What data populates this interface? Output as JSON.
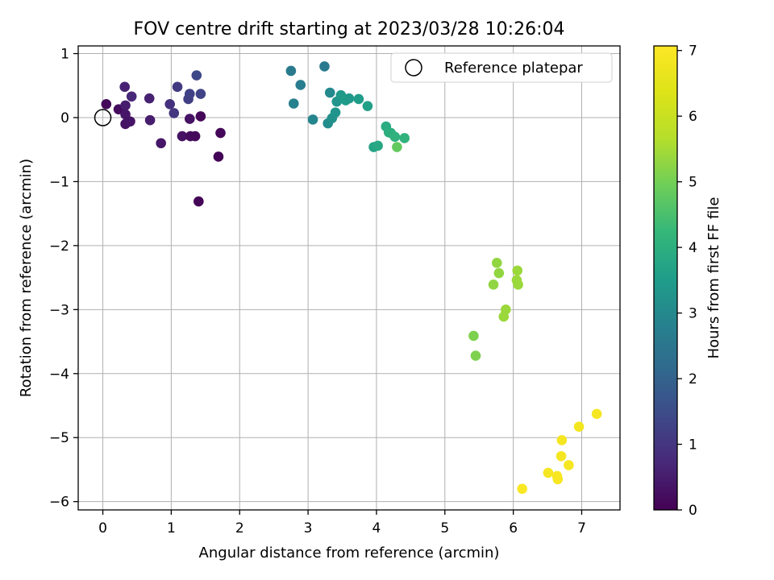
{
  "chart_data": {
    "type": "scatter",
    "title": "FOV centre drift starting at 2023/03/28 10:26:04",
    "xlabel": "Angular distance from reference (arcmin)",
    "ylabel": "Rotation from reference (arcmin)",
    "xlim": [
      -0.36,
      7.56
    ],
    "ylim": [
      -6.13,
      1.12
    ],
    "xticks": [
      0,
      1,
      2,
      3,
      4,
      5,
      6,
      7
    ],
    "yticks": [
      1,
      0,
      -1,
      -2,
      -3,
      -4,
      -5,
      -6
    ],
    "grid": true,
    "legend": {
      "position": "top-right",
      "entries": [
        "Reference platepar"
      ]
    },
    "reference_point": {
      "x": 0,
      "y": 0
    },
    "colorbar": {
      "label": "Hours from first FF file",
      "min": 0,
      "max": 7.07,
      "ticks": [
        0,
        1,
        2,
        3,
        4,
        5,
        6,
        7
      ],
      "colormap": "viridis"
    },
    "points": [
      {
        "x": 0.05,
        "y": 0.21,
        "c": 0.1
      },
      {
        "x": 0.23,
        "y": 0.13,
        "c": 0.2
      },
      {
        "x": 0.32,
        "y": 0.48,
        "c": 0.6
      },
      {
        "x": 0.33,
        "y": 0.19,
        "c": 0.5
      },
      {
        "x": 0.33,
        "y": 0.05,
        "c": 0.4
      },
      {
        "x": 0.33,
        "y": -0.1,
        "c": 0.3
      },
      {
        "x": 0.4,
        "y": -0.06,
        "c": 0.35
      },
      {
        "x": 0.42,
        "y": 0.33,
        "c": 0.7
      },
      {
        "x": 0.68,
        "y": 0.3,
        "c": 0.6
      },
      {
        "x": 0.69,
        "y": -0.04,
        "c": 0.5
      },
      {
        "x": 0.85,
        "y": -0.4,
        "c": 0.4
      },
      {
        "x": 0.98,
        "y": 0.21,
        "c": 0.9
      },
      {
        "x": 1.04,
        "y": 0.07,
        "c": 1.0
      },
      {
        "x": 1.09,
        "y": 0.48,
        "c": 1.1
      },
      {
        "x": 1.16,
        "y": -0.29,
        "c": 0.3
      },
      {
        "x": 1.25,
        "y": 0.29,
        "c": 1.2
      },
      {
        "x": 1.27,
        "y": 0.37,
        "c": 1.25
      },
      {
        "x": 1.27,
        "y": -0.02,
        "c": 0.3
      },
      {
        "x": 1.28,
        "y": -0.29,
        "c": 0.2
      },
      {
        "x": 1.35,
        "y": -0.29,
        "c": 0.15
      },
      {
        "x": 1.37,
        "y": 0.66,
        "c": 1.4
      },
      {
        "x": 1.4,
        "y": -1.31,
        "c": 0.05
      },
      {
        "x": 1.43,
        "y": 0.02,
        "c": 0.1
      },
      {
        "x": 1.43,
        "y": 0.37,
        "c": 1.3
      },
      {
        "x": 1.69,
        "y": -0.61,
        "c": 0.05
      },
      {
        "x": 1.72,
        "y": -0.24,
        "c": 0.1
      },
      {
        "x": 2.75,
        "y": 0.73,
        "c": 2.6
      },
      {
        "x": 2.79,
        "y": 0.22,
        "c": 2.8
      },
      {
        "x": 2.89,
        "y": 0.51,
        "c": 2.7
      },
      {
        "x": 3.07,
        "y": -0.03,
        "c": 2.9
      },
      {
        "x": 3.24,
        "y": 0.8,
        "c": 2.6
      },
      {
        "x": 3.29,
        "y": -0.09,
        "c": 3.1
      },
      {
        "x": 3.32,
        "y": 0.39,
        "c": 3.0
      },
      {
        "x": 3.35,
        "y": -0.01,
        "c": 3.2
      },
      {
        "x": 3.4,
        "y": 0.08,
        "c": 3.3
      },
      {
        "x": 3.42,
        "y": 0.25,
        "c": 3.3
      },
      {
        "x": 3.48,
        "y": 0.35,
        "c": 3.4
      },
      {
        "x": 3.55,
        "y": 0.27,
        "c": 3.5
      },
      {
        "x": 3.6,
        "y": 0.3,
        "c": 3.4
      },
      {
        "x": 3.74,
        "y": 0.29,
        "c": 3.5
      },
      {
        "x": 3.87,
        "y": 0.18,
        "c": 3.6
      },
      {
        "x": 3.96,
        "y": -0.46,
        "c": 3.7
      },
      {
        "x": 4.02,
        "y": -0.44,
        "c": 3.8
      },
      {
        "x": 4.14,
        "y": -0.14,
        "c": 3.9
      },
      {
        "x": 4.18,
        "y": -0.23,
        "c": 4.0
      },
      {
        "x": 4.21,
        "y": -0.24,
        "c": 4.0
      },
      {
        "x": 4.27,
        "y": -0.3,
        "c": 4.1
      },
      {
        "x": 4.3,
        "y": -0.46,
        "c": 4.8
      },
      {
        "x": 4.41,
        "y": -0.32,
        "c": 4.1
      },
      {
        "x": 5.42,
        "y": -3.41,
        "c": 5.1
      },
      {
        "x": 5.45,
        "y": -3.72,
        "c": 5.1
      },
      {
        "x": 5.71,
        "y": -2.61,
        "c": 5.3
      },
      {
        "x": 5.76,
        "y": -2.27,
        "c": 5.3
      },
      {
        "x": 5.79,
        "y": -2.43,
        "c": 5.3
      },
      {
        "x": 5.86,
        "y": -3.11,
        "c": 5.4
      },
      {
        "x": 5.89,
        "y": -3.0,
        "c": 5.4
      },
      {
        "x": 6.05,
        "y": -2.54,
        "c": 5.4
      },
      {
        "x": 6.06,
        "y": -2.39,
        "c": 5.4
      },
      {
        "x": 6.07,
        "y": -2.61,
        "c": 5.4
      },
      {
        "x": 6.13,
        "y": -5.8,
        "c": 7.0
      },
      {
        "x": 6.51,
        "y": -5.55,
        "c": 6.9
      },
      {
        "x": 6.64,
        "y": -5.6,
        "c": 6.95
      },
      {
        "x": 6.65,
        "y": -5.65,
        "c": 6.95
      },
      {
        "x": 6.7,
        "y": -5.29,
        "c": 6.9
      },
      {
        "x": 6.71,
        "y": -5.04,
        "c": 6.9
      },
      {
        "x": 6.81,
        "y": -5.43,
        "c": 6.9
      },
      {
        "x": 6.96,
        "y": -4.83,
        "c": 6.85
      },
      {
        "x": 7.22,
        "y": -4.63,
        "c": 6.9
      }
    ]
  }
}
